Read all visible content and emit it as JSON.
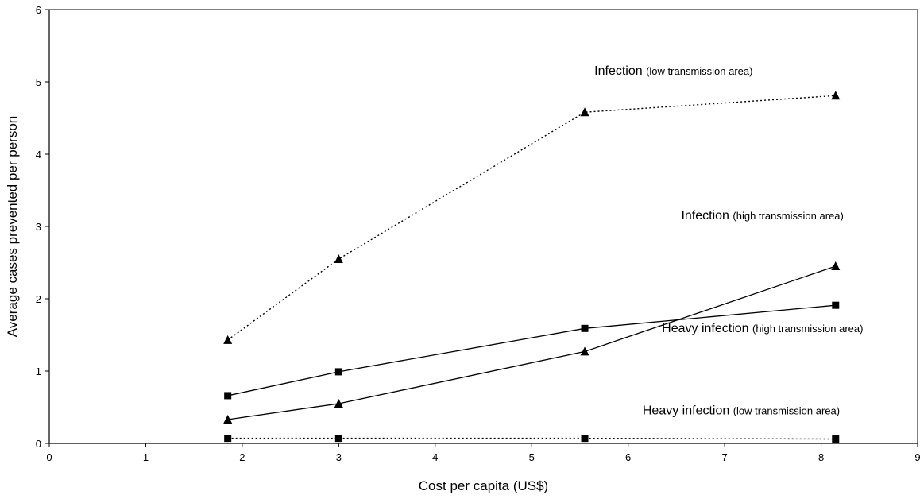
{
  "chart_data": {
    "type": "line",
    "xlabel": "Cost per capita (US$)",
    "ylabel": "Average cases prevented per person",
    "xlim": [
      0,
      9
    ],
    "ylim": [
      0,
      6
    ],
    "xticks": [
      "0",
      "1",
      "2",
      "3",
      "4",
      "5",
      "6",
      "7",
      "8",
      "9"
    ],
    "yticks": [
      "0",
      "1",
      "2",
      "3",
      "4",
      "5",
      "6"
    ],
    "grid": false,
    "legend": "none",
    "series": [
      {
        "key": "infection_low",
        "x": [
          1.85,
          3.0,
          5.55,
          8.15
        ],
        "y": [
          1.43,
          2.55,
          4.58,
          4.81
        ],
        "line_style": "dotted",
        "marker": "triangle",
        "color": "#000000"
      },
      {
        "key": "infection_high",
        "x": [
          1.85,
          3.0,
          5.55,
          8.15
        ],
        "y": [
          0.33,
          0.55,
          1.27,
          2.45
        ],
        "line_style": "solid",
        "marker": "triangle",
        "color": "#000000"
      },
      {
        "key": "heavy_high",
        "x": [
          1.85,
          3.0,
          5.55,
          8.15
        ],
        "y": [
          0.66,
          0.99,
          1.59,
          1.91
        ],
        "line_style": "solid",
        "marker": "square",
        "color": "#000000"
      },
      {
        "key": "heavy_low",
        "x": [
          1.85,
          3.0,
          5.55,
          8.15
        ],
        "y": [
          0.07,
          0.07,
          0.07,
          0.06
        ],
        "line_style": "dotted",
        "marker": "square",
        "color": "#000000"
      }
    ],
    "annotations": [
      {
        "key": "ann-infection-low",
        "main": "Infection",
        "sub": "(low transmission area)",
        "x": 5.65,
        "y": 5.1
      },
      {
        "key": "ann-infection-high",
        "main": "Infection",
        "sub": "(high transmission area)",
        "x": 6.55,
        "y": 3.1
      },
      {
        "key": "ann-heavy-high",
        "main": "Heavy infection",
        "sub": "(high transmission area)",
        "x": 6.35,
        "y": 1.54
      },
      {
        "key": "ann-heavy-low",
        "main": "Heavy infection",
        "sub": "(low transmission area)",
        "x": 6.15,
        "y": 0.4
      }
    ]
  }
}
